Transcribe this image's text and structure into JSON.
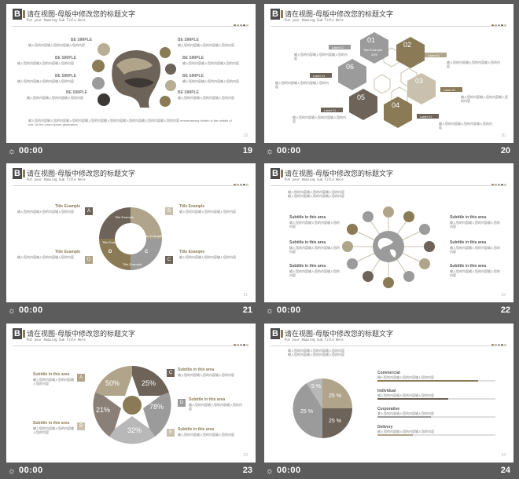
{
  "common": {
    "title": "请在视图-母版中修改您的标题文字",
    "subtitle": "Put your Amazing Sub Title Here",
    "logo": "B",
    "time": "00:00",
    "placeholder": "输入您的内容输入您的内容输入您的内容",
    "short": "输入您的内容",
    "dot_colors": [
      "#8a7b56",
      "#b0a58a",
      "#9b9b9b",
      "#6d6358",
      "#c9c0ad"
    ]
  },
  "slides": [
    {
      "id": "19",
      "num": "19",
      "labels": [
        "BE SIMPLE",
        "BE SIMPLE",
        "BE SIMPLE",
        "BE SIMPLE",
        "BE SIMPLE",
        "BE SIMPLE",
        "BE SIMPLE",
        "BE SIMPLE"
      ],
      "footer": "输入您的内容输入您的内容输入您的内容输入您的内容输入您的内容输入您的内容输入您的内容输入您的内容 embarrassing hidden in the middle of text. All the lorem ipsum generators"
    },
    {
      "id": "20",
      "num": "20",
      "hex_nums": [
        "01",
        "02",
        "03",
        "04",
        "05",
        "06"
      ],
      "hex_label": "Title Example",
      "hex_pct": "20%",
      "tag": "Label 01"
    },
    {
      "id": "21",
      "num": "21",
      "letters": [
        "A",
        "B",
        "C",
        "D"
      ],
      "center_labels": [
        "Title Example",
        "Title Example",
        "Title Example",
        "Title Example"
      ],
      "side_titles": [
        "Title Example",
        "Title Example",
        "Title Example",
        "Title Example"
      ]
    },
    {
      "id": "22",
      "num": "22",
      "subtitle": "Subtitle in this area"
    },
    {
      "id": "23",
      "num": "23",
      "subtitle": "Subtitle in this area",
      "letters": [
        "A",
        "B",
        "C",
        "D",
        "E"
      ],
      "pcts": [
        "50%",
        "25%",
        "78%",
        "32%",
        "21%"
      ]
    },
    {
      "id": "24",
      "num": "24",
      "pie": [
        "5 %",
        "25 %",
        "25 %",
        "25 %"
      ],
      "bars": [
        {
          "name": "Commercial",
          "value": 0.85
        },
        {
          "name": "Individual",
          "value": 0.6
        },
        {
          "name": "Corporative",
          "value": 0.45
        },
        {
          "name": "Delivery",
          "value": 0.3
        }
      ]
    }
  ]
}
